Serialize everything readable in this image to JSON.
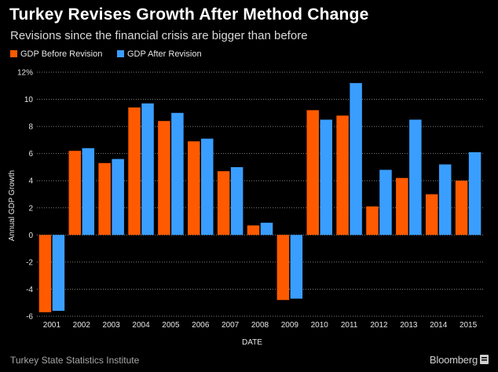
{
  "header": {
    "title": "Turkey Revises Growth After Method Change",
    "subtitle": "Revisions since the financial crisis are bigger than before"
  },
  "footer": {
    "source": "Turkey State Statistics Institute",
    "brand": "Bloomberg"
  },
  "colors": {
    "background": "#000000",
    "before": "#ff5a00",
    "after": "#3a9eff",
    "grid": "#808080"
  },
  "chart_data": {
    "type": "bar",
    "title": "Turkey Revises Growth After Method Change",
    "xlabel": "DATE",
    "ylabel": "Annual GDP Growth",
    "ylim": [
      -6,
      12
    ],
    "yticks": [
      -6,
      -4,
      -2,
      0,
      2,
      4,
      6,
      8,
      10,
      12
    ],
    "ytick_labels": [
      "-6",
      "-4",
      "-2",
      "0",
      "2",
      "4",
      "6",
      "8",
      "10",
      "12%"
    ],
    "grid": true,
    "legend_position": "top-left",
    "categories": [
      "2001",
      "2002",
      "2003",
      "2004",
      "2005",
      "2006",
      "2007",
      "2008",
      "2009",
      "2010",
      "2011",
      "2012",
      "2013",
      "2014",
      "2015"
    ],
    "series": [
      {
        "name": "GDP Before Revision",
        "color": "#ff5a00",
        "values": [
          -5.7,
          6.2,
          5.3,
          9.4,
          8.4,
          6.9,
          4.7,
          0.7,
          -4.8,
          9.2,
          8.8,
          2.1,
          4.2,
          3.0,
          4.0
        ]
      },
      {
        "name": "GDP After Revision",
        "color": "#3a9eff",
        "values": [
          -5.6,
          6.4,
          5.6,
          9.7,
          9.0,
          7.1,
          5.0,
          0.9,
          -4.7,
          8.5,
          11.2,
          4.8,
          8.5,
          5.2,
          6.1
        ]
      }
    ]
  }
}
